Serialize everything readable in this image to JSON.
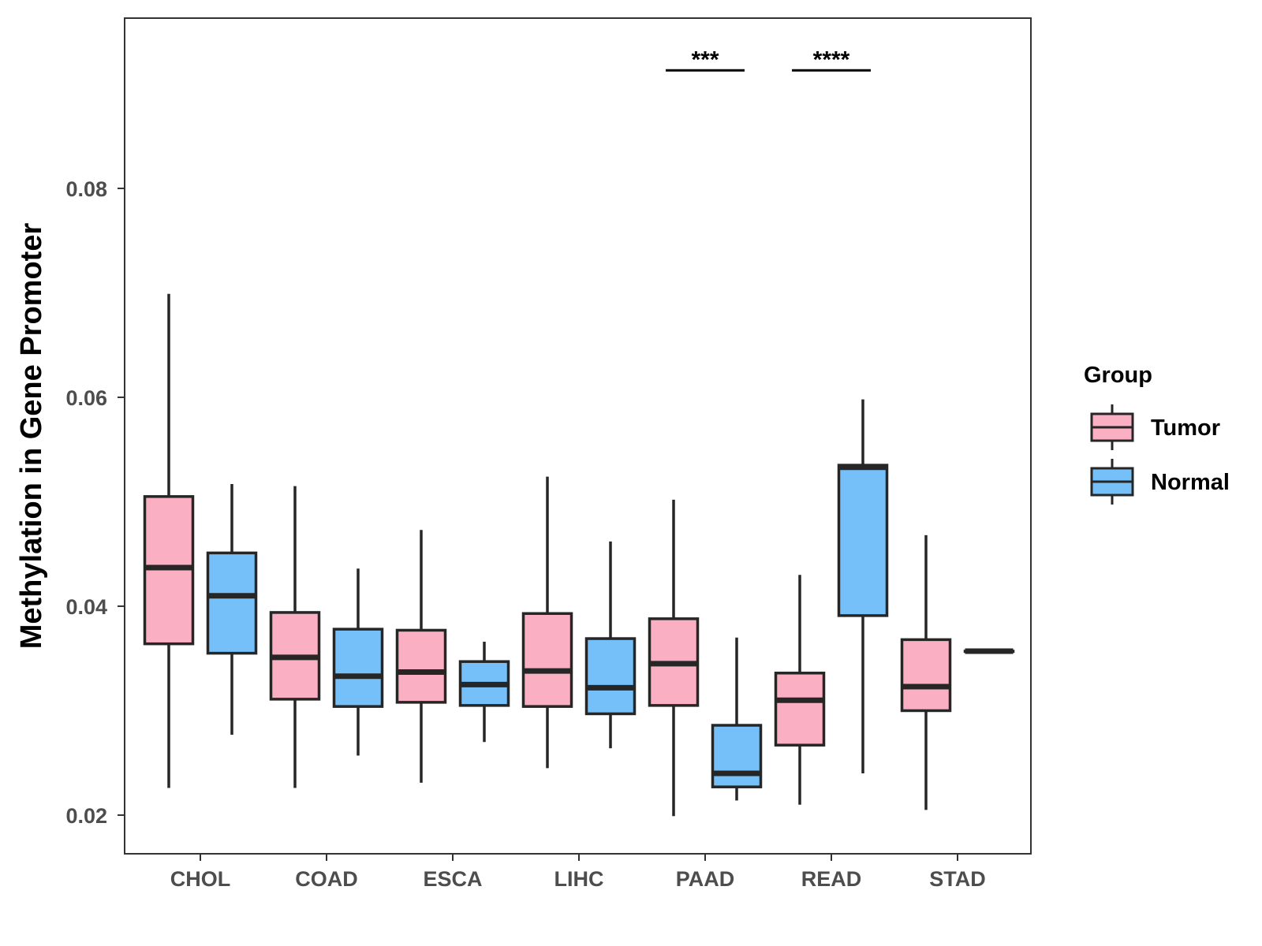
{
  "chart_data": {
    "type": "boxplot",
    "title": "",
    "xlabel": "",
    "ylabel": "Methylation in Gene Promoter",
    "ylim": [
      0.0163,
      0.0963
    ],
    "yticks": [
      0.02,
      0.04,
      0.06,
      0.08
    ],
    "ytick_labels": [
      "0.02",
      "0.04",
      "0.06",
      "0.08"
    ],
    "categories": [
      "CHOL",
      "COAD",
      "ESCA",
      "LIHC",
      "PAAD",
      "READ",
      "STAD"
    ],
    "legend": {
      "title": "Group",
      "position": "right",
      "entries": [
        {
          "name": "Tumor",
          "color": "#FBAFC2"
        },
        {
          "name": "Normal",
          "color": "#75C0F8"
        }
      ]
    },
    "series": [
      {
        "name": "Tumor",
        "color": "#FBAFC2",
        "boxes": [
          {
            "category": "CHOL",
            "whisker_low": 0.0226,
            "q1": 0.0364,
            "median": 0.0437,
            "q3": 0.0505,
            "whisker_high": 0.0699
          },
          {
            "category": "COAD",
            "whisker_low": 0.0226,
            "q1": 0.0311,
            "median": 0.0351,
            "q3": 0.0394,
            "whisker_high": 0.0515
          },
          {
            "category": "ESCA",
            "whisker_low": 0.0231,
            "q1": 0.0308,
            "median": 0.0337,
            "q3": 0.0377,
            "whisker_high": 0.0473
          },
          {
            "category": "LIHC",
            "whisker_low": 0.0245,
            "q1": 0.0304,
            "median": 0.0338,
            "q3": 0.0393,
            "whisker_high": 0.0524
          },
          {
            "category": "PAAD",
            "whisker_low": 0.0199,
            "q1": 0.0305,
            "median": 0.0345,
            "q3": 0.0388,
            "whisker_high": 0.0502
          },
          {
            "category": "READ",
            "whisker_low": 0.021,
            "q1": 0.0267,
            "median": 0.031,
            "q3": 0.0336,
            "whisker_high": 0.043
          },
          {
            "category": "STAD",
            "whisker_low": 0.0205,
            "q1": 0.03,
            "median": 0.0323,
            "q3": 0.0368,
            "whisker_high": 0.0468
          }
        ]
      },
      {
        "name": "Normal",
        "color": "#75C0F8",
        "boxes": [
          {
            "category": "CHOL",
            "whisker_low": 0.0277,
            "q1": 0.0355,
            "median": 0.041,
            "q3": 0.0451,
            "whisker_high": 0.0517
          },
          {
            "category": "COAD",
            "whisker_low": 0.0257,
            "q1": 0.0304,
            "median": 0.0333,
            "q3": 0.0378,
            "whisker_high": 0.0436
          },
          {
            "category": "ESCA",
            "whisker_low": 0.027,
            "q1": 0.0305,
            "median": 0.0325,
            "q3": 0.0347,
            "whisker_high": 0.0366
          },
          {
            "category": "LIHC",
            "whisker_low": 0.0264,
            "q1": 0.0297,
            "median": 0.0322,
            "q3": 0.0369,
            "whisker_high": 0.0462
          },
          {
            "category": "PAAD",
            "whisker_low": 0.0214,
            "q1": 0.0227,
            "median": 0.024,
            "q3": 0.0286,
            "whisker_high": 0.037
          },
          {
            "category": "READ",
            "whisker_low": 0.024,
            "q1": 0.0391,
            "median": 0.0533,
            "q3": 0.0535,
            "whisker_high": 0.0598
          },
          {
            "category": "STAD",
            "whisker_low": 0.0357,
            "q1": 0.0357,
            "median": 0.0357,
            "q3": 0.0357,
            "whisker_high": 0.0357
          }
        ]
      }
    ],
    "annotations": [
      {
        "category": "PAAD",
        "label": "***",
        "y": 0.0913
      },
      {
        "category": "READ",
        "label": "****",
        "y": 0.0913
      }
    ]
  }
}
